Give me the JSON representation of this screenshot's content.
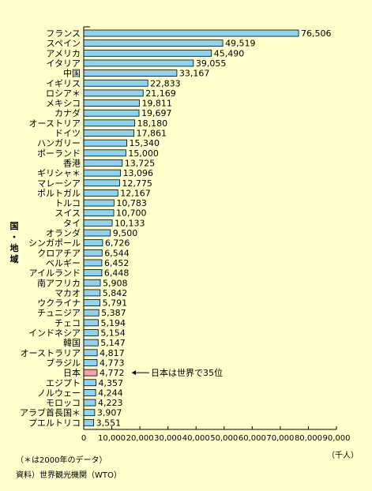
{
  "chart_data": {
    "type": "bar",
    "orientation": "horizontal",
    "categories": [
      "フランス",
      "スペイン",
      "アメリカ",
      "イタリア",
      "中国",
      "イギリス",
      "ロシア＊",
      "メキシコ",
      "カナダ",
      "オーストリア",
      "ドイツ",
      "ハンガリー",
      "ポーランド",
      "香港",
      "ギリシャ＊",
      "マレーシア",
      "ポルトガル",
      "トルコ",
      "スイス",
      "タイ",
      "オランダ",
      "シンガポール",
      "クロアチア",
      "ベルギー",
      "アイルランド",
      "南アフリカ",
      "マカオ",
      "ウクライナ",
      "チュニジア",
      "チェコ",
      "インドネシア",
      "韓国",
      "オーストラリア",
      "ブラジル",
      "日本",
      "エジプト",
      "ノルウェー",
      "モロッコ",
      "アラブ首長国＊",
      "プエルトリコ"
    ],
    "values": [
      76506,
      49519,
      45490,
      39055,
      33167,
      22833,
      21169,
      19811,
      19697,
      18180,
      17861,
      15340,
      15000,
      13725,
      13096,
      12775,
      12167,
      10783,
      10700,
      10133,
      9500,
      6726,
      6544,
      6452,
      6448,
      5908,
      5842,
      5791,
      5387,
      5194,
      5154,
      5147,
      4817,
      4773,
      4772,
      4357,
      4244,
      4223,
      3907,
      3551
    ],
    "value_labels": [
      "76,506",
      "49,519",
      "45,490",
      "39,055",
      "33,167",
      "22,833",
      "21,169",
      "19,811",
      "19,697",
      "18,180",
      "17,861",
      "15,340",
      "15,000",
      "13,725",
      "13,096",
      "12,775",
      "12,167",
      "10,783",
      "10,700",
      "10,133",
      "9,500",
      "6,726",
      "6,544",
      "6,452",
      "6,448",
      "5,908",
      "5,842",
      "5,791",
      "5,387",
      "5,194",
      "5,154",
      "5,147",
      "4,817",
      "4,773",
      "4,772",
      "4,357",
      "4,244",
      "4,223",
      "3,907",
      "3,551"
    ],
    "highlight_category": "日本",
    "xlim": [
      0,
      90000
    ],
    "x_ticks": [
      "0",
      "10,000",
      "20,000",
      "30,000",
      "40,000",
      "50,000",
      "60,000",
      "70,000",
      "80,000",
      "90,000"
    ],
    "x_unit": "（千人）",
    "ylabel": "国・地域",
    "annotation": "日本は世界で35位",
    "grid": false,
    "colors": {
      "bar": "#8ed4f0",
      "highlight": "#f4a0a8",
      "edge": "#000000",
      "background": "#ffffcc"
    }
  },
  "notes": {
    "line1": "（＊は2000年のデータ）",
    "line2": "資料）世界観光機関（WTO）"
  }
}
